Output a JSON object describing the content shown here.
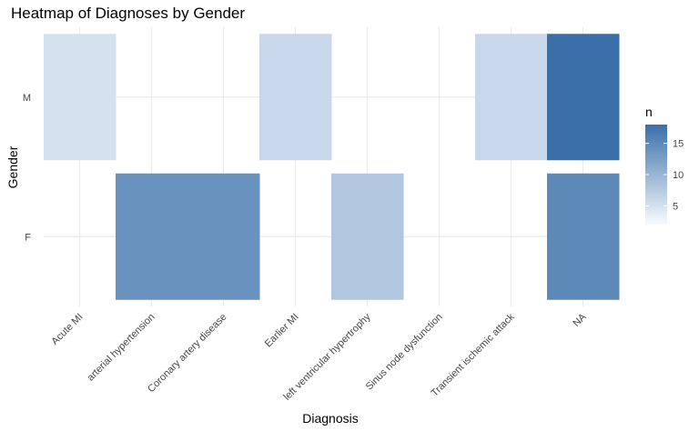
{
  "chart_data": {
    "type": "heatmap",
    "title": "Heatmap of Diagnoses by Gender",
    "xlabel": "Diagnosis",
    "ylabel": "Gender",
    "x_categories": [
      "Acute MI",
      "arterial hypertension",
      "Coronary artery disease",
      "Earlier MI",
      "left ventricular hypertrophy",
      "Sinus node dysfunction",
      "Transient ischemic attack",
      "NA"
    ],
    "y_categories": [
      "F",
      "M"
    ],
    "cells": [
      {
        "x": "Acute MI",
        "y": "M",
        "value": 5
      },
      {
        "x": "Earlier MI",
        "y": "M",
        "value": 6
      },
      {
        "x": "Transient ischemic attack",
        "y": "M",
        "value": 6
      },
      {
        "x": "NA",
        "y": "M",
        "value": 18
      },
      {
        "x": "arterial hypertension",
        "y": "F",
        "value": 14
      },
      {
        "x": "Coronary artery disease",
        "y": "F",
        "value": 14
      },
      {
        "x": "left ventricular hypertrophy",
        "y": "F",
        "value": 8
      },
      {
        "x": "NA",
        "y": "F",
        "value": 15
      }
    ],
    "legend": {
      "title": "n",
      "ticks": [
        5,
        10,
        15
      ],
      "range": [
        2,
        18
      ],
      "low_color": "#f7fbff",
      "high_color": "#3a6fa9",
      "position": "right"
    },
    "grid": true,
    "background": "#ffffff",
    "grid_color": "#ebebeb"
  }
}
